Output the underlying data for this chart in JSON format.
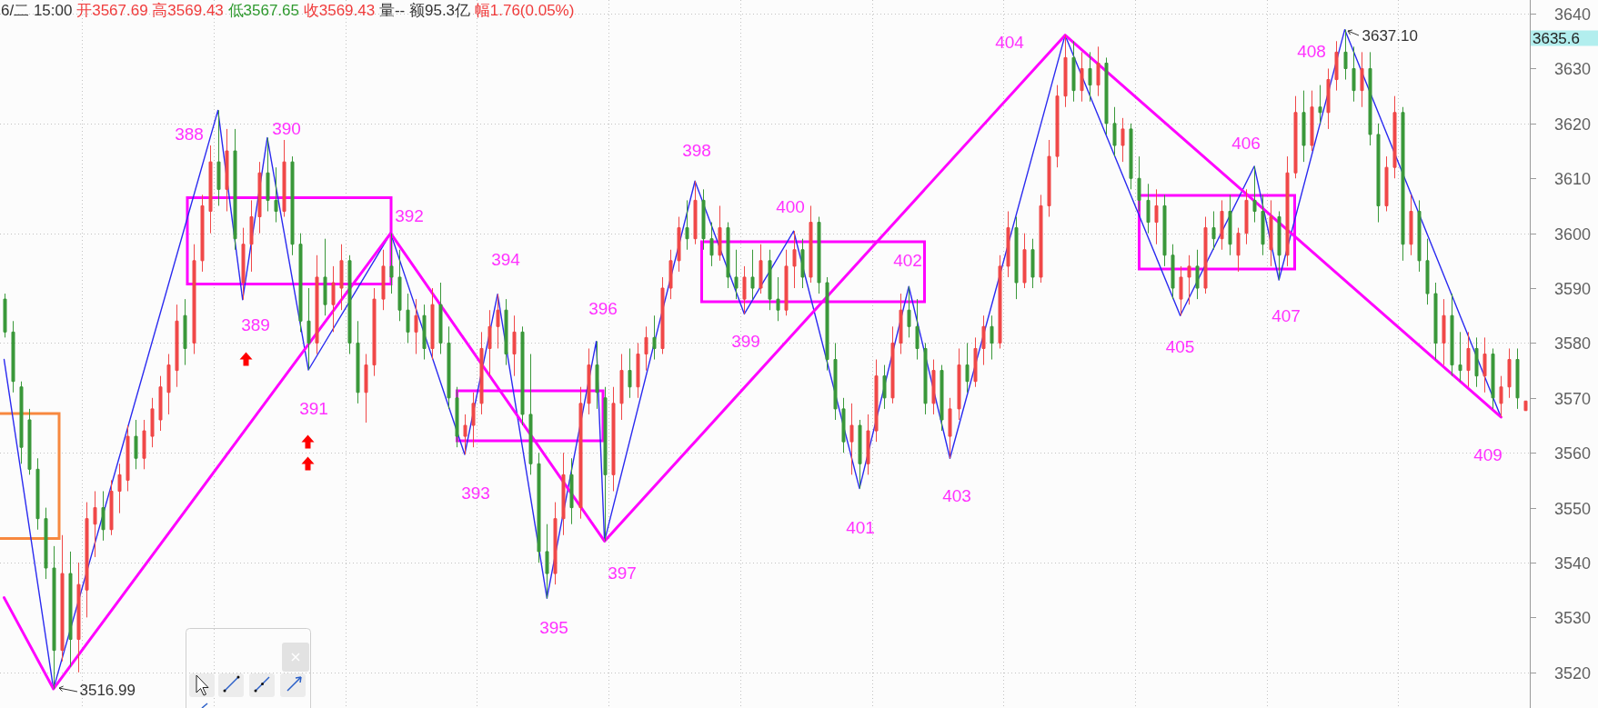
{
  "chart_data": {
    "type": "candlestick",
    "title": "6/二 15:00 开3567.69 高3569.43 低3567.65 收3569.43 量-- 额95.3亿 幅1.76(0.05%)",
    "categories": [
      null,
      null,
      null,
      null,
      null,
      null,
      null,
      null,
      null,
      null,
      null,
      null,
      null,
      null,
      null,
      null,
      null,
      null,
      null,
      null,
      null,
      null,
      null,
      null,
      null,
      null,
      null,
      null,
      null,
      null,
      null,
      null,
      null,
      null,
      null,
      null,
      null,
      null,
      null,
      null,
      null,
      null,
      null,
      null,
      null,
      null,
      null,
      null,
      null,
      null,
      null,
      null,
      null,
      null,
      null,
      null,
      null,
      null,
      null,
      null,
      null,
      null,
      null,
      null,
      null,
      null,
      null,
      null,
      null,
      null,
      null,
      null,
      null,
      null,
      null,
      null,
      null,
      null,
      null,
      null,
      null,
      null,
      null,
      null,
      null,
      null,
      null,
      null,
      null,
      null,
      null,
      null,
      null,
      null,
      null,
      null,
      null,
      null,
      null,
      null,
      null,
      null,
      null,
      null,
      null,
      null,
      null,
      null,
      null,
      null,
      null,
      null,
      null,
      null,
      null,
      null,
      null,
      null,
      null,
      null,
      null,
      null,
      null,
      null,
      null,
      null,
      null,
      null,
      null,
      null,
      null,
      null,
      null,
      null,
      null,
      null,
      null,
      null,
      null,
      null,
      null,
      null,
      null,
      null,
      null,
      null,
      null,
      null,
      null,
      null,
      null,
      null,
      null,
      null,
      null,
      null,
      null,
      null,
      null,
      null,
      null,
      null,
      null,
      null,
      null,
      null,
      null,
      null,
      null,
      null,
      null,
      null,
      null,
      null,
      null,
      null,
      null,
      null,
      null,
      null,
      null,
      null,
      null,
      null,
      null,
      null
    ],
    "ohlc": [
      [
        3588,
        3589,
        3581,
        3582
      ],
      [
        3582,
        3584,
        3571,
        3573
      ],
      [
        3572,
        3573,
        3558,
        3561
      ],
      [
        3566,
        3568,
        3556,
        3557
      ],
      [
        3557,
        3559,
        3546,
        3548
      ],
      [
        3548,
        3550,
        3537,
        3539
      ],
      [
        3539,
        3543,
        3516.99,
        3524
      ],
      [
        3524,
        3545,
        3522,
        3538
      ],
      [
        3538,
        3542,
        3521,
        3526
      ],
      [
        3526,
        3540,
        3520,
        3536
      ],
      [
        3535,
        3551,
        3530,
        3548
      ],
      [
        3547,
        3553,
        3541,
        3550
      ],
      [
        3550,
        3553,
        3544,
        3546
      ],
      [
        3546,
        3555,
        3545,
        3553
      ],
      [
        3553,
        3558,
        3549,
        3556
      ],
      [
        3555,
        3565,
        3553,
        3563
      ],
      [
        3563,
        3566,
        3557,
        3559
      ],
      [
        3559,
        3566,
        3557,
        3564
      ],
      [
        3563,
        3570,
        3561,
        3568
      ],
      [
        3566,
        3574,
        3564,
        3572
      ],
      [
        3571,
        3578,
        3567,
        3576
      ],
      [
        3575,
        3587,
        3572,
        3584
      ],
      [
        3585,
        3588,
        3576,
        3579
      ],
      [
        3580,
        3598,
        3578,
        3595
      ],
      [
        3595,
        3607,
        3593,
        3605
      ],
      [
        3604,
        3616,
        3600,
        3613
      ],
      [
        3613,
        3622.4,
        3605,
        3608
      ],
      [
        3608,
        3619,
        3604,
        3615
      ],
      [
        3615,
        3619,
        3597,
        3599
      ],
      [
        3591,
        3601,
        3587.9,
        3598
      ],
      [
        3598,
        3606,
        3593,
        3603
      ],
      [
        3603,
        3613,
        3600,
        3611
      ],
      [
        3611,
        3617.4,
        3604,
        3606
      ],
      [
        3606,
        3612,
        3602,
        3604
      ],
      [
        3604,
        3617,
        3603,
        3613
      ],
      [
        3613,
        3614,
        3596,
        3598
      ],
      [
        3598,
        3600,
        3582,
        3584
      ],
      [
        3584,
        3590,
        3575.1,
        3580
      ],
      [
        3580,
        3596,
        3578,
        3592
      ],
      [
        3592,
        3599,
        3585,
        3587
      ],
      [
        3587,
        3594,
        3582,
        3591
      ],
      [
        3590,
        3598,
        3586,
        3595
      ],
      [
        3595,
        3596,
        3578,
        3580
      ],
      [
        3580,
        3584,
        3569,
        3571
      ],
      [
        3571,
        3578,
        3565.5,
        3576
      ],
      [
        3576,
        3590,
        3574,
        3588
      ],
      [
        3588,
        3597,
        3586,
        3594
      ],
      [
        3594,
        3600,
        3589,
        3592
      ],
      [
        3592,
        3597,
        3584,
        3586
      ],
      [
        3586,
        3589,
        3580,
        3582
      ],
      [
        3582,
        3588,
        3578,
        3585
      ],
      [
        3585,
        3587,
        3577,
        3579
      ],
      [
        3579,
        3590,
        3577,
        3587
      ],
      [
        3587,
        3591,
        3578,
        3580
      ],
      [
        3580,
        3583,
        3568,
        3570
      ],
      [
        3570,
        3572,
        3561,
        3563
      ],
      [
        3563,
        3567,
        3559.7,
        3565
      ],
      [
        3565,
        3571,
        3561,
        3569
      ],
      [
        3569,
        3582,
        3567,
        3579
      ],
      [
        3579,
        3586,
        3574,
        3583
      ],
      [
        3583,
        3588.9,
        3579,
        3586
      ],
      [
        3586,
        3588,
        3576,
        3578
      ],
      [
        3578,
        3585,
        3574,
        3582
      ],
      [
        3582,
        3583,
        3565,
        3567
      ],
      [
        3567,
        3578,
        3556,
        3558
      ],
      [
        3558,
        3560,
        3540,
        3542
      ],
      [
        3542,
        3547,
        3533.5,
        3538
      ],
      [
        3538,
        3551,
        3536,
        3548
      ],
      [
        3548,
        3560,
        3545,
        3556
      ],
      [
        3556,
        3559,
        3547,
        3550
      ],
      [
        3550,
        3572,
        3548,
        3569
      ],
      [
        3569,
        3579,
        3567,
        3576
      ],
      [
        3576,
        3580.3,
        3568,
        3571
      ],
      [
        3570,
        3572,
        3543.9,
        3556
      ],
      [
        3556,
        3572,
        3553,
        3569
      ],
      [
        3569,
        3578,
        3566,
        3575
      ],
      [
        3575,
        3579,
        3570,
        3572
      ],
      [
        3572,
        3580,
        3570,
        3578
      ],
      [
        3578,
        3583,
        3575,
        3581
      ],
      [
        3581,
        3585,
        3577,
        3579
      ],
      [
        3579,
        3592,
        3578,
        3590
      ],
      [
        3590,
        3597,
        3588,
        3595
      ],
      [
        3595,
        3603,
        3593,
        3601
      ],
      [
        3601,
        3606,
        3597,
        3599
      ],
      [
        3599,
        3609.5,
        3598,
        3606
      ],
      [
        3606,
        3608,
        3597,
        3599
      ],
      [
        3599,
        3602,
        3594,
        3596
      ],
      [
        3596,
        3605,
        3595,
        3601
      ],
      [
        3601,
        3602,
        3590,
        3592
      ],
      [
        3592,
        3597,
        3588,
        3590
      ],
      [
        3588,
        3594,
        3585.3,
        3592
      ],
      [
        3592,
        3597,
        3588,
        3590
      ],
      [
        3590,
        3598,
        3589,
        3595
      ],
      [
        3595,
        3597,
        3586,
        3588
      ],
      [
        3588,
        3592,
        3584,
        3586
      ],
      [
        3586,
        3597,
        3585,
        3594
      ],
      [
        3594,
        3600.4,
        3590,
        3597
      ],
      [
        3597,
        3599,
        3590,
        3592
      ],
      [
        3592,
        3605,
        3591,
        3602
      ],
      [
        3602,
        3603,
        3589,
        3591
      ],
      [
        3591,
        3592,
        3575,
        3577
      ],
      [
        3577,
        3580,
        3566,
        3568
      ],
      [
        3568,
        3570,
        3560,
        3562
      ],
      [
        3562,
        3569,
        3556,
        3565
      ],
      [
        3565,
        3566,
        3553.5,
        3558
      ],
      [
        3558,
        3567,
        3556,
        3564
      ],
      [
        3564,
        3577,
        3562,
        3574
      ],
      [
        3574,
        3576,
        3568,
        3570
      ],
      [
        3570,
        3583,
        3569,
        3580
      ],
      [
        3580,
        3589,
        3578,
        3586
      ],
      [
        3586,
        3590.3,
        3581,
        3583
      ],
      [
        3583,
        3588,
        3577,
        3579
      ],
      [
        3579,
        3580,
        3567,
        3569
      ],
      [
        3569,
        3577,
        3567,
        3575
      ],
      [
        3575,
        3576,
        3564,
        3566
      ],
      [
        3563,
        3570,
        3559,
        3568
      ],
      [
        3568,
        3579,
        3566,
        3576
      ],
      [
        3576,
        3580,
        3571,
        3573
      ],
      [
        3573,
        3581,
        3572,
        3579
      ],
      [
        3579,
        3585,
        3576,
        3583
      ],
      [
        3583,
        3585,
        3577,
        3580
      ],
      [
        3580,
        3596,
        3579,
        3594
      ],
      [
        3594,
        3604,
        3592,
        3601
      ],
      [
        3601,
        3603,
        3588,
        3591
      ],
      [
        3591,
        3600,
        3590,
        3597
      ],
      [
        3597,
        3599,
        3590,
        3592
      ],
      [
        3592,
        3607,
        3591,
        3605
      ],
      [
        3605,
        3617,
        3603,
        3614
      ],
      [
        3614,
        3627,
        3612,
        3625
      ],
      [
        3625,
        3636.1,
        3623,
        3632
      ],
      [
        3632,
        3635,
        3624,
        3626
      ],
      [
        3626,
        3633,
        3624,
        3630
      ],
      [
        3630,
        3633,
        3624,
        3627
      ],
      [
        3627,
        3634,
        3625,
        3631
      ],
      [
        3631,
        3632,
        3618,
        3620
      ],
      [
        3620,
        3623,
        3614,
        3616
      ],
      [
        3616,
        3621,
        3613,
        3619
      ],
      [
        3619,
        3620,
        3608,
        3610
      ],
      [
        3610,
        3614,
        3604,
        3606
      ],
      [
        3606,
        3609,
        3600,
        3602
      ],
      [
        3602,
        3608,
        3598,
        3605
      ],
      [
        3605,
        3607,
        3594,
        3596
      ],
      [
        3596,
        3598,
        3588,
        3590
      ],
      [
        3588,
        3594,
        3585,
        3592
      ],
      [
        3592,
        3596,
        3587,
        3594
      ],
      [
        3594,
        3597,
        3588,
        3590
      ],
      [
        3590,
        3603,
        3589,
        3601
      ],
      [
        3601,
        3604,
        3597,
        3599
      ],
      [
        3599,
        3606,
        3597,
        3604
      ],
      [
        3604,
        3607,
        3596,
        3598
      ],
      [
        3596,
        3601,
        3593,
        3600
      ],
      [
        3600,
        3608,
        3598,
        3606
      ],
      [
        3606,
        3612.2,
        3602,
        3604
      ],
      [
        3604,
        3607,
        3596,
        3598
      ],
      [
        3597,
        3606,
        3594,
        3603
      ],
      [
        3603,
        3604,
        3591.5,
        3596
      ],
      [
        3596,
        3614,
        3594,
        3611
      ],
      [
        3611,
        3625,
        3610,
        3622
      ],
      [
        3622,
        3626,
        3613,
        3616
      ],
      [
        3616,
        3626,
        3615,
        3623
      ],
      [
        3623,
        3627,
        3620,
        3622
      ],
      [
        3622,
        3630,
        3619,
        3628
      ],
      [
        3628,
        3635,
        3626,
        3633
      ],
      [
        3633,
        3637.1,
        3628,
        3630
      ],
      [
        3630,
        3634,
        3624,
        3626
      ],
      [
        3626,
        3633,
        3623,
        3630
      ],
      [
        3630,
        3633,
        3616,
        3618
      ],
      [
        3618,
        3620,
        3602,
        3605
      ],
      [
        3605,
        3614,
        3604,
        3612
      ],
      [
        3612,
        3625,
        3610,
        3622
      ],
      [
        3622,
        3623,
        3595,
        3598
      ],
      [
        3598,
        3607,
        3596,
        3604
      ],
      [
        3604,
        3606,
        3593,
        3595
      ],
      [
        3595,
        3599,
        3587,
        3589
      ],
      [
        3589,
        3591,
        3577,
        3580
      ],
      [
        3580,
        3588,
        3576,
        3585
      ],
      [
        3585,
        3589,
        3574,
        3576
      ],
      [
        3576,
        3582,
        3573,
        3575
      ],
      [
        3575,
        3582,
        3572,
        3579
      ],
      [
        3579,
        3581,
        3572,
        3574
      ],
      [
        3574,
        3581,
        3571,
        3578
      ],
      [
        3578,
        3579,
        3568,
        3570
      ],
      [
        3569,
        3574,
        3566.5,
        3572
      ],
      [
        3572,
        3579,
        3570,
        3577
      ],
      [
        3577,
        3579,
        3568,
        3570
      ],
      [
        3567.69,
        3569.43,
        3567.65,
        3569.43
      ]
    ],
    "series": [
      {
        "type": "line",
        "color": "#2a2af0",
        "values": [
          3577,
          null,
          null,
          null,
          null,
          null,
          3516.99,
          null,
          null,
          null,
          null,
          null,
          null,
          null,
          null,
          null,
          null,
          null,
          null,
          null,
          null,
          null,
          null,
          null,
          null,
          null,
          3622.4,
          null,
          null,
          3587.9,
          null,
          null,
          3617.4,
          null,
          null,
          null,
          null,
          3575.1,
          null,
          null,
          null,
          null,
          null,
          null,
          null,
          null,
          null,
          3600,
          null,
          null,
          null,
          null,
          null,
          null,
          null,
          null,
          3559.7,
          null,
          null,
          null,
          3588.9,
          null,
          null,
          null,
          null,
          null,
          3533.5,
          null,
          null,
          null,
          null,
          null,
          3580.3,
          3543.9,
          null,
          null,
          null,
          null,
          null,
          null,
          null,
          null,
          null,
          null,
          3609.5,
          null,
          null,
          null,
          null,
          null,
          3585.3,
          null,
          null,
          null,
          null,
          null,
          3600.4,
          null,
          null,
          null,
          null,
          null,
          null,
          null,
          3553.5,
          null,
          null,
          null,
          null,
          null,
          3590.3,
          null,
          null,
          null,
          null,
          3559,
          null,
          null,
          null,
          null,
          null,
          null,
          null,
          null,
          null,
          null,
          null,
          null,
          null,
          3636.1,
          null,
          null,
          null,
          null,
          null,
          null,
          null,
          null,
          null,
          null,
          null,
          null,
          null,
          3585,
          null,
          null,
          null,
          null,
          null,
          null,
          null,
          null,
          3612.2,
          null,
          null,
          3591.5,
          null,
          null,
          null,
          null,
          null,
          null,
          null,
          3637.1,
          null,
          null,
          null,
          null,
          null,
          null,
          null,
          null,
          null,
          null,
          null,
          null,
          null,
          null,
          null,
          null,
          null,
          null,
          3566.5,
          null,
          null,
          null
        ]
      },
      {
        "type": "line",
        "color": "#ff00ff",
        "values": [
          3533.6,
          null,
          null,
          null,
          null,
          null,
          3516.99,
          null,
          null,
          null,
          null,
          null,
          null,
          null,
          null,
          null,
          null,
          null,
          null,
          null,
          null,
          null,
          null,
          null,
          null,
          null,
          null,
          null,
          null,
          null,
          null,
          null,
          null,
          null,
          null,
          null,
          null,
          null,
          null,
          null,
          null,
          null,
          null,
          null,
          null,
          null,
          null,
          3600,
          null,
          null,
          null,
          null,
          null,
          null,
          null,
          null,
          null,
          null,
          null,
          null,
          null,
          null,
          null,
          null,
          null,
          null,
          null,
          null,
          null,
          null,
          null,
          null,
          null,
          3543.9,
          null,
          null,
          null,
          null,
          null,
          null,
          null,
          null,
          null,
          null,
          null,
          null,
          null,
          null,
          null,
          null,
          null,
          null,
          null,
          null,
          null,
          null,
          null,
          null,
          null,
          null,
          null,
          null,
          null,
          null,
          null,
          null,
          null,
          null,
          null,
          null,
          null,
          null,
          null,
          null,
          null,
          null,
          null,
          null,
          null,
          null,
          null,
          null,
          null,
          null,
          null,
          null,
          null,
          null,
          null,
          3636.1,
          null,
          null,
          null,
          null,
          null,
          null,
          null,
          null,
          null,
          null,
          null,
          null,
          null,
          null,
          null,
          null,
          null,
          null,
          null,
          null,
          null,
          null,
          null,
          null,
          null,
          null,
          null,
          null,
          null,
          null,
          null,
          null,
          null,
          null,
          null,
          null,
          null,
          null,
          null,
          null,
          null,
          null,
          null,
          null,
          null,
          null,
          null,
          null,
          null,
          null,
          null,
          null,
          3566.5,
          null,
          null,
          null
        ]
      }
    ],
    "annotations": [
      "388",
      "389",
      "390",
      "391",
      "392",
      "393",
      "394",
      "395",
      "396",
      "397",
      "398",
      "399",
      "400",
      "401",
      "402",
      "403",
      "404",
      "405",
      "406",
      "407",
      "408",
      "409",
      "3516.99",
      "3637.10",
      "3635.6"
    ],
    "ylim": [
      3513.5,
      3642.5
    ],
    "yticks": [
      3520,
      3530,
      3540,
      3550,
      3560,
      3570,
      3580,
      3590,
      3600,
      3610,
      3620,
      3630,
      3640
    ],
    "grid": true,
    "tick_labels": "y"
  }
}
